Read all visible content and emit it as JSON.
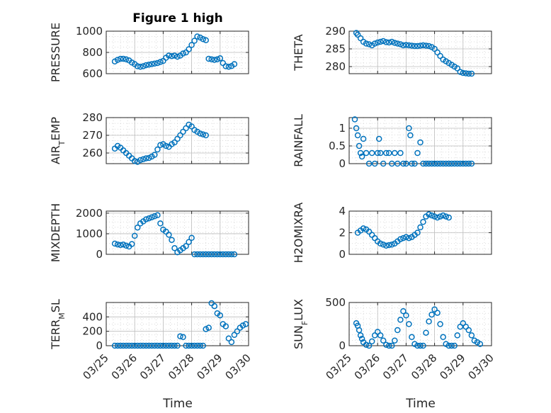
{
  "figure": {
    "title": "Figure 1 high",
    "xlabel": "Time"
  },
  "chart_data": [
    {
      "type": "scatter",
      "ylabel_main": "PRESSURE",
      "ylabel_sub": "",
      "ylabel_tail": "",
      "ylim": [
        600,
        1000
      ],
      "yticks": [
        600,
        800,
        1000
      ],
      "yticklabels": [
        "600",
        "800",
        "1000"
      ],
      "xlim": [
        0,
        5
      ],
      "show_xticklabels": false,
      "x": [
        0.3,
        0.4,
        0.5,
        0.6,
        0.7,
        0.8,
        0.9,
        1.0,
        1.1,
        1.2,
        1.3,
        1.4,
        1.5,
        1.6,
        1.7,
        1.8,
        1.9,
        2.0,
        2.1,
        2.2,
        2.3,
        2.4,
        2.5,
        2.6,
        2.7,
        2.8,
        2.9,
        3.0,
        3.1,
        3.2,
        3.3,
        3.4,
        3.5,
        3.6,
        3.7,
        3.8,
        3.9,
        4.0,
        4.1,
        4.2,
        4.3,
        4.4,
        4.5
      ],
      "y": [
        715,
        730,
        740,
        740,
        735,
        725,
        705,
        690,
        670,
        665,
        670,
        680,
        685,
        690,
        695,
        700,
        710,
        720,
        750,
        770,
        765,
        770,
        760,
        770,
        790,
        800,
        830,
        870,
        910,
        950,
        940,
        925,
        915,
        740,
        735,
        730,
        735,
        745,
        700,
        670,
        665,
        672,
        690
      ]
    },
    {
      "type": "scatter",
      "ylabel_main": "THETA",
      "ylabel_sub": "",
      "ylabel_tail": "",
      "ylim": [
        278,
        290
      ],
      "yticks": [
        280,
        285,
        290
      ],
      "yticklabels": [
        "280",
        "285",
        "290"
      ],
      "xlim": [
        0,
        5
      ],
      "show_xticklabels": false,
      "x": [
        0.25,
        0.3,
        0.4,
        0.5,
        0.6,
        0.7,
        0.8,
        0.9,
        1.0,
        1.1,
        1.2,
        1.3,
        1.4,
        1.5,
        1.6,
        1.7,
        1.8,
        1.9,
        2.0,
        2.1,
        2.2,
        2.3,
        2.4,
        2.5,
        2.6,
        2.7,
        2.8,
        2.9,
        3.0,
        3.1,
        3.2,
        3.3,
        3.4,
        3.5,
        3.6,
        3.7,
        3.8,
        3.9,
        4.0,
        4.1,
        4.2,
        4.3
      ],
      "y": [
        289.5,
        289.0,
        288.0,
        287.0,
        286.5,
        286.3,
        286.0,
        286.5,
        286.8,
        287.0,
        287.2,
        286.9,
        286.8,
        287.0,
        286.7,
        286.5,
        286.3,
        286.0,
        286.1,
        286.0,
        285.9,
        285.8,
        285.8,
        285.9,
        286.0,
        285.9,
        285.8,
        285.5,
        285.0,
        284.0,
        283.0,
        282.0,
        281.5,
        281.0,
        280.5,
        280.0,
        279.5,
        278.5,
        278.2,
        278.1,
        278.0,
        278.0
      ]
    },
    {
      "type": "scatter",
      "ylabel_main": "AIR",
      "ylabel_sub": "T",
      "ylabel_tail": "EMP",
      "ylim": [
        254,
        280
      ],
      "yticks": [
        260,
        270,
        280
      ],
      "yticklabels": [
        "260",
        "270",
        "280"
      ],
      "xlim": [
        0,
        5
      ],
      "show_xticklabels": false,
      "x": [
        0.3,
        0.4,
        0.5,
        0.6,
        0.7,
        0.8,
        0.9,
        1.0,
        1.1,
        1.2,
        1.3,
        1.4,
        1.5,
        1.6,
        1.7,
        1.8,
        1.9,
        2.0,
        2.1,
        2.2,
        2.3,
        2.4,
        2.5,
        2.6,
        2.7,
        2.8,
        2.9,
        3.0,
        3.1,
        3.2,
        3.3,
        3.4,
        3.5
      ],
      "y": [
        262.5,
        264.0,
        263.0,
        261.5,
        260.0,
        258.5,
        257.0,
        255.5,
        255.0,
        256.0,
        256.5,
        257.0,
        257.2,
        258.0,
        259.0,
        262.0,
        264.5,
        265.0,
        264.0,
        263.5,
        265.0,
        266.0,
        268.0,
        270.0,
        272.0,
        274.0,
        276.0,
        275.0,
        273.0,
        272.0,
        271.0,
        270.5,
        270.0
      ]
    },
    {
      "type": "scatter",
      "ylabel_main": "RAINFALL",
      "ylabel_sub": "",
      "ylabel_tail": "",
      "ylim": [
        0,
        1.3
      ],
      "yticks": [
        0,
        0.5,
        1
      ],
      "yticklabels": [
        "0",
        "0.5",
        "1"
      ],
      "xlim": [
        0,
        5
      ],
      "show_xticklabels": false,
      "x": [
        0.2,
        0.25,
        0.3,
        0.35,
        0.4,
        0.45,
        0.5,
        0.6,
        0.7,
        0.8,
        0.9,
        1.0,
        1.05,
        1.1,
        1.2,
        1.3,
        1.4,
        1.5,
        1.6,
        1.7,
        1.8,
        1.9,
        2.0,
        2.1,
        2.15,
        2.2,
        2.3,
        2.4,
        2.5,
        2.6,
        2.7,
        2.8,
        2.9,
        3.0,
        3.1,
        3.2,
        3.3,
        3.4,
        3.5,
        3.6,
        3.7,
        3.8,
        3.9,
        4.0,
        4.1,
        4.2,
        4.3
      ],
      "y": [
        1.25,
        1.0,
        0.8,
        0.5,
        0.3,
        0.2,
        0.7,
        0.3,
        0.0,
        0.3,
        0.0,
        0.3,
        0.7,
        0.3,
        0.0,
        0.3,
        0.3,
        0.0,
        0.3,
        0.0,
        0.3,
        0.0,
        0.0,
        1.0,
        0.8,
        0.0,
        0.0,
        0.3,
        0.6,
        0.0,
        0.0,
        0.0,
        0.0,
        0.0,
        0.0,
        0.0,
        0.0,
        0.0,
        0.0,
        0.0,
        0.0,
        0.0,
        0.0,
        0.0,
        0.0,
        0.0,
        0.0
      ]
    },
    {
      "type": "scatter",
      "ylabel_main": "MIXDEPTH",
      "ylabel_sub": "",
      "ylabel_tail": "",
      "ylim": [
        0,
        2100
      ],
      "yticks": [
        0,
        1000,
        2000
      ],
      "yticklabels": [
        "0",
        "1000",
        "2000"
      ],
      "xlim": [
        0,
        5
      ],
      "show_xticklabels": false,
      "x": [
        0.3,
        0.4,
        0.5,
        0.6,
        0.7,
        0.8,
        0.9,
        1.0,
        1.1,
        1.2,
        1.3,
        1.4,
        1.5,
        1.6,
        1.7,
        1.8,
        1.9,
        2.0,
        2.1,
        2.2,
        2.3,
        2.4,
        2.5,
        2.6,
        2.7,
        2.8,
        2.9,
        3.0,
        3.1,
        3.2,
        3.3,
        3.4,
        3.5,
        3.6,
        3.7,
        3.8,
        3.9,
        4.0,
        4.1,
        4.2,
        4.3,
        4.4,
        4.5
      ],
      "y": [
        520,
        480,
        450,
        470,
        420,
        380,
        500,
        900,
        1300,
        1500,
        1600,
        1700,
        1750,
        1800,
        1850,
        1900,
        1500,
        1200,
        1100,
        950,
        700,
        300,
        100,
        200,
        300,
        400,
        600,
        800,
        0,
        0,
        0,
        0,
        0,
        0,
        0,
        0,
        0,
        0,
        0,
        0,
        0,
        0,
        0
      ]
    },
    {
      "type": "scatter",
      "ylabel_main": "H2OMIXRA",
      "ylabel_sub": "",
      "ylabel_tail": "",
      "ylim": [
        0,
        4
      ],
      "yticks": [
        0,
        2,
        4
      ],
      "yticklabels": [
        "0",
        "2",
        "4"
      ],
      "xlim": [
        0,
        5
      ],
      "show_xticklabels": false,
      "x": [
        0.3,
        0.4,
        0.5,
        0.6,
        0.7,
        0.8,
        0.9,
        1.0,
        1.1,
        1.2,
        1.3,
        1.4,
        1.5,
        1.6,
        1.7,
        1.8,
        1.9,
        2.0,
        2.1,
        2.2,
        2.3,
        2.4,
        2.5,
        2.6,
        2.7,
        2.8,
        2.9,
        3.0,
        3.1,
        3.2,
        3.3,
        3.4,
        3.5
      ],
      "y": [
        2.0,
        2.2,
        2.4,
        2.3,
        2.1,
        1.8,
        1.5,
        1.2,
        1.0,
        0.9,
        0.8,
        0.85,
        0.9,
        1.0,
        1.2,
        1.4,
        1.5,
        1.6,
        1.5,
        1.6,
        1.8,
        2.0,
        2.5,
        3.0,
        3.5,
        3.7,
        3.6,
        3.5,
        3.4,
        3.5,
        3.6,
        3.5,
        3.4
      ]
    },
    {
      "type": "scatter",
      "ylabel_main": "TERR",
      "ylabel_sub": "M",
      "ylabel_tail": "SL",
      "ylim": [
        0,
        600
      ],
      "yticks": [
        0,
        200,
        400
      ],
      "yticklabels": [
        "0",
        "200",
        "400"
      ],
      "xlim": [
        0,
        5
      ],
      "show_xticklabels": true,
      "xticks": [
        0,
        1,
        2,
        3,
        4,
        5
      ],
      "xticklabels": [
        "03/25",
        "03/26",
        "03/27",
        "03/28",
        "03/29",
        "03/30"
      ],
      "x": [
        0.3,
        0.4,
        0.5,
        0.6,
        0.7,
        0.8,
        0.9,
        1.0,
        1.1,
        1.2,
        1.3,
        1.4,
        1.5,
        1.6,
        1.7,
        1.8,
        1.9,
        2.0,
        2.1,
        2.2,
        2.3,
        2.4,
        2.5,
        2.6,
        2.7,
        2.8,
        2.9,
        3.0,
        3.1,
        3.2,
        3.3,
        3.4,
        3.5,
        3.6,
        3.7,
        3.8,
        3.9,
        4.0,
        4.1,
        4.2,
        4.3,
        4.4,
        4.5,
        4.6,
        4.7,
        4.8,
        4.9
      ],
      "y": [
        0,
        0,
        0,
        0,
        0,
        0,
        0,
        0,
        0,
        0,
        0,
        0,
        0,
        0,
        0,
        0,
        0,
        0,
        0,
        0,
        0,
        0,
        0,
        130,
        120,
        0,
        0,
        0,
        0,
        0,
        0,
        0,
        230,
        250,
        590,
        550,
        450,
        420,
        300,
        270,
        100,
        50,
        150,
        200,
        250,
        280,
        300
      ]
    },
    {
      "type": "scatter",
      "ylabel_main": "SUN",
      "ylabel_sub": "F",
      "ylabel_tail": "LUX",
      "ylim": [
        0,
        500
      ],
      "yticks": [
        0,
        500
      ],
      "yticklabels": [
        "0",
        "500"
      ],
      "xlim": [
        0,
        5
      ],
      "show_xticklabels": true,
      "xticks": [
        0,
        1,
        2,
        3,
        4,
        5
      ],
      "xticklabels": [
        "03/25",
        "03/26",
        "03/27",
        "03/28",
        "03/29",
        "03/30"
      ],
      "x": [
        0.25,
        0.3,
        0.35,
        0.4,
        0.45,
        0.5,
        0.6,
        0.7,
        0.8,
        0.9,
        1.0,
        1.1,
        1.2,
        1.3,
        1.4,
        1.5,
        1.6,
        1.7,
        1.8,
        1.9,
        2.0,
        2.1,
        2.2,
        2.3,
        2.4,
        2.5,
        2.6,
        2.7,
        2.8,
        2.9,
        3.0,
        3.1,
        3.2,
        3.3,
        3.4,
        3.5,
        3.6,
        3.7,
        3.8,
        3.9,
        4.0,
        4.1,
        4.2,
        4.3,
        4.4,
        4.5,
        4.6
      ],
      "y": [
        260,
        230,
        180,
        120,
        80,
        40,
        10,
        0,
        50,
        120,
        160,
        120,
        60,
        10,
        0,
        0,
        60,
        180,
        300,
        400,
        350,
        250,
        100,
        20,
        0,
        0,
        0,
        150,
        280,
        360,
        420,
        380,
        250,
        100,
        20,
        0,
        0,
        0,
        120,
        220,
        260,
        220,
        180,
        120,
        60,
        40,
        20
      ]
    }
  ]
}
